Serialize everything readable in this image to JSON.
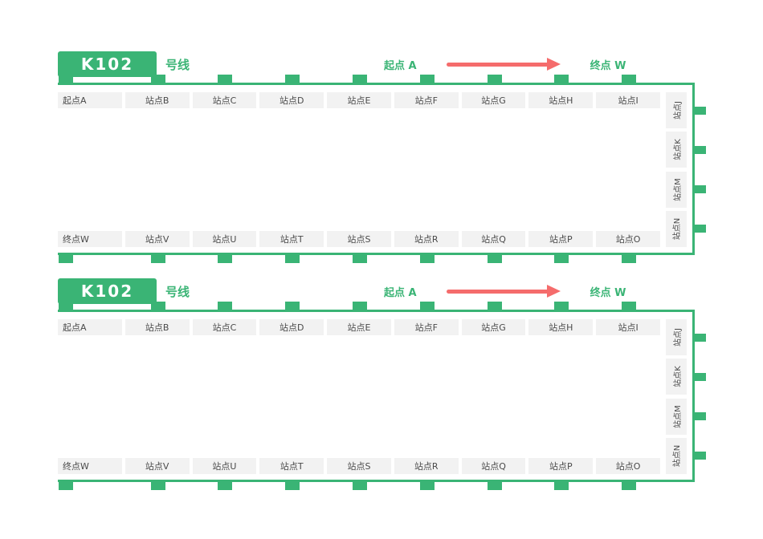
{
  "colors": {
    "accent_green": "#3ab475",
    "arrow_red": "#f56c6c",
    "cell_bg": "#f2f2f2",
    "cell_text": "#4a4a4a"
  },
  "panels": [
    {
      "line_number": "K102",
      "line_suffix": "号线",
      "direction_start": "起点 A",
      "direction_end": "终点 W",
      "top_stations": [
        "起点A",
        "站点B",
        "站点C",
        "站点D",
        "站点E",
        "站点F",
        "站点G",
        "站点H",
        "站点I"
      ],
      "right_stations": [
        "站点J",
        "站点K",
        "站点M",
        "站点N"
      ],
      "bottom_stations": [
        "终点W",
        "站点V",
        "站点U",
        "站点T",
        "站点S",
        "站点R",
        "站点Q",
        "站点P",
        "站点O"
      ]
    },
    {
      "line_number": "K102",
      "line_suffix": "号线",
      "direction_start": "起点 A",
      "direction_end": "终点 W",
      "top_stations": [
        "起点A",
        "站点B",
        "站点C",
        "站点D",
        "站点E",
        "站点F",
        "站点G",
        "站点H",
        "站点I"
      ],
      "right_stations": [
        "站点J",
        "站点K",
        "站点M",
        "站点N"
      ],
      "bottom_stations": [
        "终点W",
        "站点V",
        "站点U",
        "站点T",
        "站点S",
        "站点R",
        "站点Q",
        "站点P",
        "站点O"
      ]
    }
  ]
}
